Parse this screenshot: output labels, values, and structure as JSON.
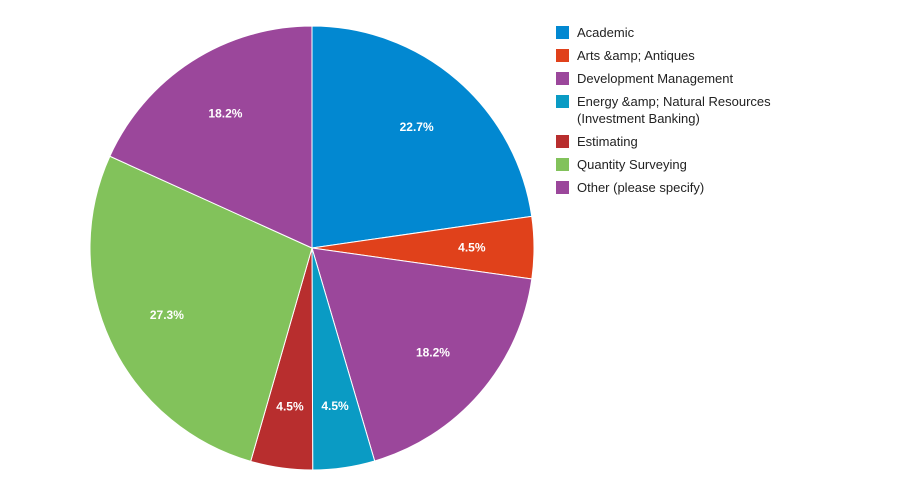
{
  "chart_data": {
    "type": "pie",
    "title": "",
    "slices": [
      {
        "label": "Academic",
        "value": 22.7,
        "display": "22.7%",
        "color": "#0288d1"
      },
      {
        "label": "Arts &amp; Antiques",
        "value": 4.5,
        "display": "4.5%",
        "color": "#e0411b"
      },
      {
        "label": "Development Management",
        "value": 18.2,
        "display": "18.2%",
        "color": "#9b479b"
      },
      {
        "label": "Energy &amp; Natural Resources\n(Investment Banking)",
        "value": 4.5,
        "display": "4.5%",
        "color": "#0a9bc4"
      },
      {
        "label": "Estimating",
        "value": 4.5,
        "display": "4.5%",
        "color": "#b82e2e"
      },
      {
        "label": "Quantity Surveying",
        "value": 27.3,
        "display": "27.3%",
        "color": "#82c25b"
      },
      {
        "label": "Other (please specify)",
        "value": 18.2,
        "display": "18.2%",
        "color": "#9b479b"
      }
    ],
    "legend_position": "right"
  }
}
